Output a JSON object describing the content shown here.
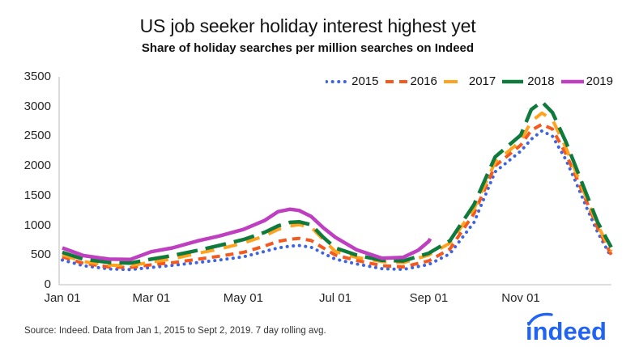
{
  "header": {
    "title": "US job seeker holiday interest highest yet",
    "subtitle": "Share of holiday searches per million searches on Indeed"
  },
  "footer": {
    "source": "Source: Indeed. Data from Jan 1, 2015 to Sept 2, 2019. 7 day rolling avg.",
    "logo_text": "indeed",
    "logo_color": "#2164F3"
  },
  "chart_data": {
    "type": "line",
    "title": "US job seeker holiday interest highest yet",
    "subtitle": "Share of holiday searches per million searches on Indeed",
    "ylabel": "Share of holiday searches per million searches on Indeed",
    "ylim": [
      0,
      3500
    ],
    "y_ticks": [
      0,
      500,
      1000,
      1500,
      2000,
      2500,
      3000,
      3500
    ],
    "x_unit": "day-of-year",
    "xlim": [
      0,
      364
    ],
    "x_ticks": [
      {
        "label": "Jan 01",
        "day": 0
      },
      {
        "label": "Mar 01",
        "day": 59
      },
      {
        "label": "May 01",
        "day": 120
      },
      {
        "label": "Jul 01",
        "day": 181
      },
      {
        "label": "Sep 01",
        "day": 243
      },
      {
        "label": "Nov 01",
        "day": 304
      }
    ],
    "grid": false,
    "legend_position": "top-right-inside",
    "axis_color": "#C9C9C9",
    "series": [
      {
        "name": "2015",
        "color": "#3E64E2",
        "style": "dotted",
        "points": [
          [
            0,
            415
          ],
          [
            14,
            320
          ],
          [
            31,
            265
          ],
          [
            45,
            255
          ],
          [
            59,
            290
          ],
          [
            73,
            325
          ],
          [
            90,
            375
          ],
          [
            104,
            415
          ],
          [
            120,
            470
          ],
          [
            134,
            560
          ],
          [
            143,
            620
          ],
          [
            151,
            650
          ],
          [
            157,
            660
          ],
          [
            165,
            630
          ],
          [
            173,
            530
          ],
          [
            181,
            430
          ],
          [
            195,
            350
          ],
          [
            212,
            270
          ],
          [
            226,
            258
          ],
          [
            243,
            340
          ],
          [
            257,
            520
          ],
          [
            273,
            1050
          ],
          [
            287,
            1900
          ],
          [
            304,
            2250
          ],
          [
            311,
            2450
          ],
          [
            318,
            2590
          ],
          [
            325,
            2500
          ],
          [
            334,
            2100
          ],
          [
            341,
            1700
          ],
          [
            348,
            1280
          ],
          [
            355,
            880
          ],
          [
            364,
            465
          ]
        ]
      },
      {
        "name": "2016",
        "color": "#F4591E",
        "style": "dash-short",
        "points": [
          [
            0,
            470
          ],
          [
            14,
            360
          ],
          [
            31,
            300
          ],
          [
            45,
            290
          ],
          [
            59,
            335
          ],
          [
            73,
            370
          ],
          [
            90,
            430
          ],
          [
            104,
            480
          ],
          [
            120,
            545
          ],
          [
            134,
            650
          ],
          [
            143,
            730
          ],
          [
            151,
            765
          ],
          [
            157,
            780
          ],
          [
            165,
            745
          ],
          [
            173,
            620
          ],
          [
            181,
            500
          ],
          [
            195,
            410
          ],
          [
            212,
            320
          ],
          [
            226,
            300
          ],
          [
            243,
            400
          ],
          [
            257,
            600
          ],
          [
            273,
            1200
          ],
          [
            287,
            2000
          ],
          [
            304,
            2350
          ],
          [
            311,
            2600
          ],
          [
            318,
            2700
          ],
          [
            325,
            2620
          ],
          [
            334,
            2200
          ],
          [
            341,
            1800
          ],
          [
            348,
            1380
          ],
          [
            355,
            950
          ],
          [
            364,
            505
          ]
        ]
      },
      {
        "name": "2017",
        "color": "#FFA21E",
        "style": "dash-medium",
        "points": [
          [
            0,
            505
          ],
          [
            14,
            390
          ],
          [
            31,
            330
          ],
          [
            45,
            320
          ],
          [
            59,
            380
          ],
          [
            73,
            435
          ],
          [
            90,
            530
          ],
          [
            104,
            600
          ],
          [
            120,
            700
          ],
          [
            134,
            820
          ],
          [
            143,
            930
          ],
          [
            151,
            990
          ],
          [
            157,
            1010
          ],
          [
            165,
            970
          ],
          [
            173,
            760
          ],
          [
            181,
            560
          ],
          [
            195,
            460
          ],
          [
            212,
            390
          ],
          [
            226,
            370
          ],
          [
            243,
            500
          ],
          [
            257,
            700
          ],
          [
            273,
            1280
          ],
          [
            287,
            2060
          ],
          [
            304,
            2420
          ],
          [
            311,
            2750
          ],
          [
            318,
            2890
          ],
          [
            325,
            2780
          ],
          [
            334,
            2300
          ],
          [
            341,
            1870
          ],
          [
            348,
            1430
          ],
          [
            355,
            1000
          ],
          [
            364,
            560
          ]
        ]
      },
      {
        "name": "2018",
        "color": "#0E7A3C",
        "style": "dash-long",
        "points": [
          [
            0,
            545
          ],
          [
            14,
            430
          ],
          [
            31,
            375
          ],
          [
            45,
            365
          ],
          [
            59,
            430
          ],
          [
            73,
            490
          ],
          [
            90,
            580
          ],
          [
            104,
            660
          ],
          [
            120,
            760
          ],
          [
            134,
            880
          ],
          [
            143,
            990
          ],
          [
            151,
            1050
          ],
          [
            157,
            1060
          ],
          [
            165,
            1010
          ],
          [
            173,
            800
          ],
          [
            181,
            620
          ],
          [
            195,
            500
          ],
          [
            212,
            410
          ],
          [
            226,
            400
          ],
          [
            243,
            530
          ],
          [
            257,
            740
          ],
          [
            273,
            1350
          ],
          [
            287,
            2150
          ],
          [
            304,
            2520
          ],
          [
            311,
            2950
          ],
          [
            318,
            3080
          ],
          [
            325,
            2900
          ],
          [
            334,
            2400
          ],
          [
            341,
            1950
          ],
          [
            348,
            1500
          ],
          [
            355,
            1050
          ],
          [
            364,
            630
          ]
        ]
      },
      {
        "name": "2019",
        "color": "#BE3FBF",
        "style": "solid",
        "points": [
          [
            0,
            620
          ],
          [
            14,
            490
          ],
          [
            31,
            430
          ],
          [
            45,
            425
          ],
          [
            59,
            555
          ],
          [
            73,
            620
          ],
          [
            90,
            740
          ],
          [
            104,
            820
          ],
          [
            120,
            930
          ],
          [
            134,
            1080
          ],
          [
            143,
            1230
          ],
          [
            151,
            1270
          ],
          [
            157,
            1250
          ],
          [
            165,
            1150
          ],
          [
            173,
            960
          ],
          [
            181,
            800
          ],
          [
            195,
            590
          ],
          [
            212,
            445
          ],
          [
            226,
            460
          ],
          [
            236,
            580
          ],
          [
            243,
            730
          ],
          [
            244,
            775
          ]
        ]
      }
    ]
  }
}
